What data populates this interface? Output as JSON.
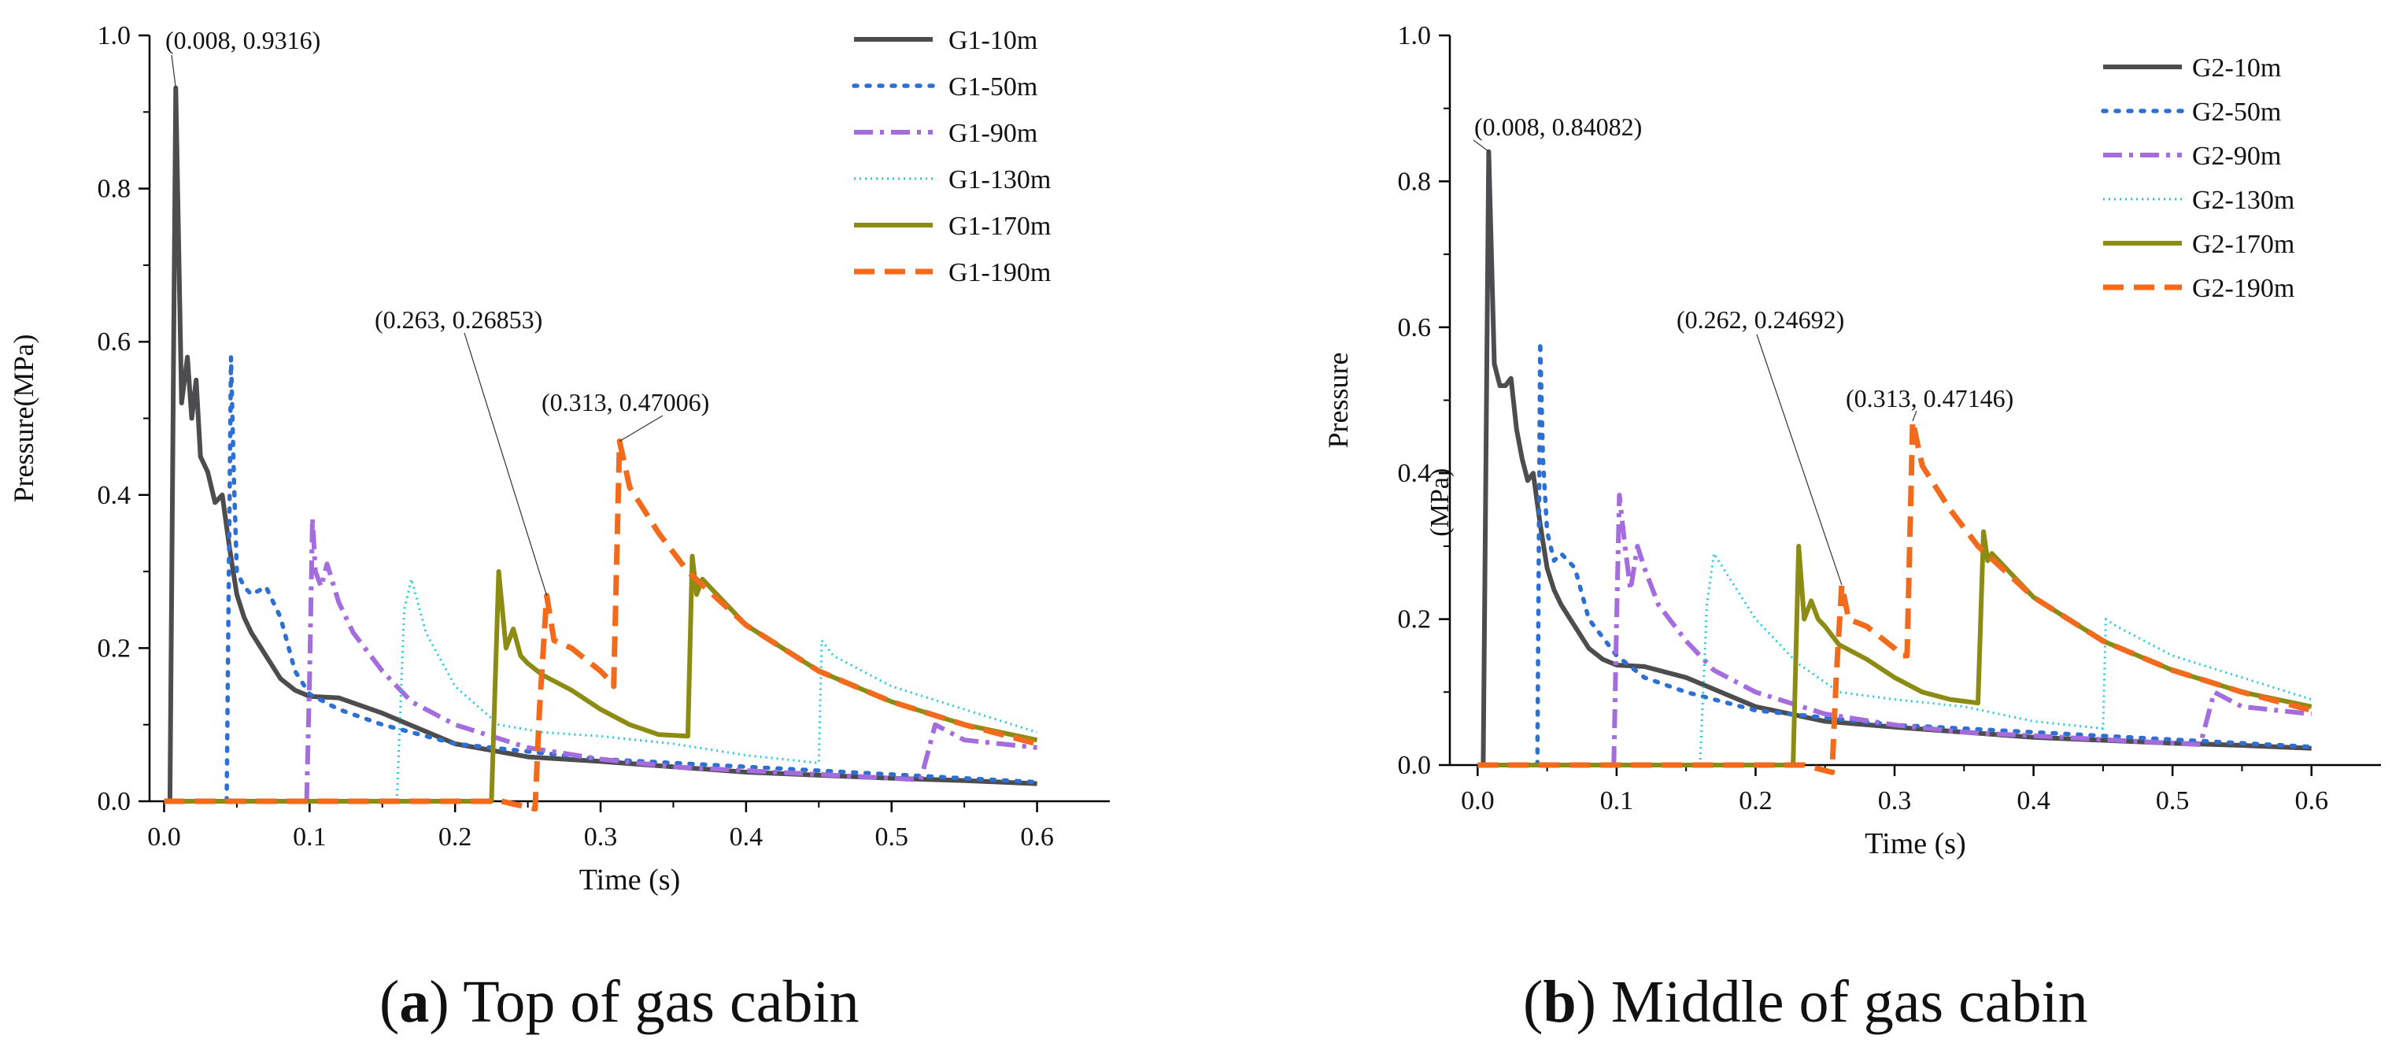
{
  "chart_data": [
    {
      "type": "line",
      "panel": "a",
      "caption_letter": "a",
      "caption_text": "Top of gas cabin",
      "xlabel": "Time (s)",
      "ylabel": "Pressure(MPa)",
      "xlim": [
        -0.01,
        0.65
      ],
      "ylim": [
        0,
        1.0
      ],
      "xticks": [
        0.0,
        0.1,
        0.2,
        0.3,
        0.4,
        0.5,
        0.6
      ],
      "xticklabels": [
        "0.0",
        "0.1",
        "0.2",
        "0.3",
        "0.4",
        "0.5",
        "0.6"
      ],
      "yticks": [
        0.0,
        0.2,
        0.4,
        0.6,
        0.8,
        1.0
      ],
      "yticklabels": [
        "0.0",
        "0.2",
        "0.4",
        "0.6",
        "0.8",
        "1.0"
      ],
      "legend_position": "top-right",
      "series": [
        {
          "name": "G1-10m",
          "color": "#4d4d4f",
          "dash": "solid",
          "x": [
            0.004,
            0.008,
            0.012,
            0.016,
            0.019,
            0.022,
            0.025,
            0.03,
            0.035,
            0.04,
            0.045,
            0.05,
            0.055,
            0.06,
            0.07,
            0.08,
            0.09,
            0.1,
            0.12,
            0.15,
            0.2,
            0.25,
            0.3,
            0.35,
            0.4,
            0.45,
            0.5,
            0.55,
            0.6
          ],
          "y": [
            0.0,
            0.9316,
            0.52,
            0.58,
            0.5,
            0.55,
            0.45,
            0.43,
            0.39,
            0.4,
            0.33,
            0.27,
            0.24,
            0.22,
            0.19,
            0.16,
            0.145,
            0.137,
            0.135,
            0.115,
            0.075,
            0.058,
            0.052,
            0.045,
            0.038,
            0.034,
            0.03,
            0.027,
            0.023
          ]
        },
        {
          "name": "G1-50m",
          "color": "#2e6fd4",
          "dash": "dot",
          "x": [
            0.043,
            0.044,
            0.046,
            0.048,
            0.05,
            0.055,
            0.06,
            0.07,
            0.08,
            0.09,
            0.1,
            0.12,
            0.15,
            0.2,
            0.3,
            0.4,
            0.5,
            0.6
          ],
          "y": [
            0.0,
            0.2,
            0.58,
            0.42,
            0.3,
            0.28,
            0.27,
            0.28,
            0.24,
            0.17,
            0.14,
            0.12,
            0.1,
            0.075,
            0.055,
            0.045,
            0.035,
            0.025
          ]
        },
        {
          "name": "G1-90m",
          "color": "#a46cdc",
          "dash": "dashdot",
          "x": [
            0.098,
            0.1,
            0.102,
            0.104,
            0.108,
            0.112,
            0.12,
            0.13,
            0.15,
            0.17,
            0.2,
            0.25,
            0.3,
            0.35,
            0.4,
            0.45,
            0.5,
            0.52,
            0.53,
            0.55,
            0.6
          ],
          "y": [
            0.0,
            0.16,
            0.37,
            0.3,
            0.28,
            0.31,
            0.26,
            0.22,
            0.17,
            0.13,
            0.1,
            0.07,
            0.055,
            0.045,
            0.04,
            0.035,
            0.03,
            0.028,
            0.1,
            0.08,
            0.07
          ]
        },
        {
          "name": "G1-130m",
          "color": "#26c9d8",
          "dash": "dense-dot",
          "x": [
            0.16,
            0.165,
            0.17,
            0.18,
            0.2,
            0.23,
            0.26,
            0.3,
            0.35,
            0.4,
            0.45,
            0.452,
            0.46,
            0.5,
            0.55,
            0.6
          ],
          "y": [
            0.0,
            0.25,
            0.29,
            0.22,
            0.15,
            0.1,
            0.09,
            0.085,
            0.075,
            0.06,
            0.05,
            0.21,
            0.19,
            0.15,
            0.12,
            0.09
          ]
        },
        {
          "name": "G1-170m",
          "color": "#8c8c14",
          "dash": "solid",
          "x": [
            0.0,
            0.225,
            0.23,
            0.235,
            0.24,
            0.245,
            0.25,
            0.26,
            0.28,
            0.3,
            0.32,
            0.34,
            0.36,
            0.363,
            0.366,
            0.37,
            0.38,
            0.4,
            0.45,
            0.5,
            0.55,
            0.6
          ],
          "y": [
            0.0,
            0.0,
            0.3,
            0.2,
            0.225,
            0.19,
            0.18,
            0.165,
            0.145,
            0.12,
            0.1,
            0.087,
            0.085,
            0.32,
            0.27,
            0.29,
            0.27,
            0.23,
            0.17,
            0.13,
            0.1,
            0.08
          ]
        },
        {
          "name": "G1-190m",
          "color": "#f26a1b",
          "dash": "dash",
          "x": [
            0.0,
            0.232,
            0.255,
            0.258,
            0.263,
            0.268,
            0.28,
            0.3,
            0.305,
            0.309,
            0.313,
            0.32,
            0.34,
            0.36,
            0.4,
            0.45,
            0.5,
            0.55,
            0.6
          ],
          "y": [
            0.0,
            0.0,
            -0.01,
            0.12,
            0.26853,
            0.21,
            0.2,
            0.17,
            0.16,
            0.15,
            0.47006,
            0.41,
            0.35,
            0.3,
            0.23,
            0.17,
            0.13,
            0.1,
            0.075
          ]
        }
      ],
      "annotations": [
        {
          "text": "(0.008, 0.9316)",
          "x": 0.008,
          "y": 0.9316
        },
        {
          "text": "(0.263, 0.26853)",
          "x": 0.263,
          "y": 0.26853
        },
        {
          "text": "(0.313, 0.47006)",
          "x": 0.313,
          "y": 0.47006
        }
      ]
    },
    {
      "type": "line",
      "panel": "b",
      "caption_letter": "b",
      "caption_text": "Middle of gas cabin",
      "xlabel": "Time (s)",
      "ylabel": "Pressure",
      "ylabel_unit": "(MPa)",
      "xlim": [
        -0.02,
        0.65
      ],
      "ylim": [
        0,
        1.0
      ],
      "xticks": [
        0.0,
        0.1,
        0.2,
        0.3,
        0.4,
        0.5,
        0.6
      ],
      "xticklabels": [
        "0.0",
        "0.1",
        "0.2",
        "0.3",
        "0.4",
        "0.5",
        "0.6"
      ],
      "yticks": [
        0.0,
        0.2,
        0.4,
        0.6,
        0.8,
        1.0
      ],
      "yticklabels": [
        "0.0",
        "0.2",
        "0.4",
        "0.6",
        "0.8",
        "1.0"
      ],
      "legend_position": "top-right",
      "series": [
        {
          "name": "G2-10m",
          "color": "#4d4d4f",
          "dash": "solid",
          "x": [
            0.004,
            0.008,
            0.012,
            0.016,
            0.02,
            0.024,
            0.028,
            0.032,
            0.036,
            0.04,
            0.045,
            0.05,
            0.055,
            0.06,
            0.07,
            0.08,
            0.09,
            0.1,
            0.12,
            0.15,
            0.2,
            0.25,
            0.3,
            0.35,
            0.4,
            0.45,
            0.5,
            0.55,
            0.6
          ],
          "y": [
            0.0,
            0.84082,
            0.55,
            0.52,
            0.52,
            0.53,
            0.46,
            0.42,
            0.39,
            0.4,
            0.33,
            0.27,
            0.24,
            0.22,
            0.19,
            0.16,
            0.145,
            0.137,
            0.135,
            0.12,
            0.08,
            0.06,
            0.052,
            0.045,
            0.038,
            0.034,
            0.03,
            0.027,
            0.023
          ]
        },
        {
          "name": "G2-50m",
          "color": "#2e6fd4",
          "dash": "dot",
          "x": [
            0.043,
            0.045,
            0.047,
            0.05,
            0.055,
            0.06,
            0.07,
            0.08,
            0.1,
            0.12,
            0.15,
            0.2,
            0.3,
            0.4,
            0.5,
            0.6
          ],
          "y": [
            0.0,
            0.58,
            0.42,
            0.32,
            0.28,
            0.29,
            0.27,
            0.2,
            0.15,
            0.12,
            0.1,
            0.075,
            0.055,
            0.045,
            0.035,
            0.025
          ]
        },
        {
          "name": "G2-90m",
          "color": "#a46cdc",
          "dash": "dashdot",
          "x": [
            0.098,
            0.1,
            0.102,
            0.106,
            0.11,
            0.115,
            0.12,
            0.13,
            0.15,
            0.17,
            0.2,
            0.25,
            0.3,
            0.35,
            0.4,
            0.45,
            0.5,
            0.52,
            0.53,
            0.55,
            0.6
          ],
          "y": [
            0.0,
            0.2,
            0.37,
            0.3,
            0.24,
            0.3,
            0.27,
            0.22,
            0.17,
            0.13,
            0.1,
            0.07,
            0.055,
            0.045,
            0.04,
            0.035,
            0.03,
            0.028,
            0.1,
            0.08,
            0.07
          ]
        },
        {
          "name": "G2-130m",
          "color": "#26c9d8",
          "dash": "dense-dot",
          "x": [
            0.16,
            0.165,
            0.17,
            0.18,
            0.2,
            0.23,
            0.26,
            0.3,
            0.35,
            0.4,
            0.45,
            0.452,
            0.46,
            0.5,
            0.55,
            0.6
          ],
          "y": [
            0.0,
            0.22,
            0.29,
            0.26,
            0.2,
            0.14,
            0.1,
            0.09,
            0.08,
            0.06,
            0.05,
            0.2,
            0.19,
            0.15,
            0.12,
            0.09
          ]
        },
        {
          "name": "G2-170m",
          "color": "#8c8c14",
          "dash": "solid",
          "x": [
            0.0,
            0.227,
            0.231,
            0.235,
            0.24,
            0.245,
            0.25,
            0.26,
            0.28,
            0.3,
            0.32,
            0.34,
            0.36,
            0.364,
            0.367,
            0.37,
            0.38,
            0.4,
            0.45,
            0.5,
            0.55,
            0.6
          ],
          "y": [
            0.0,
            0.0,
            0.3,
            0.2,
            0.225,
            0.2,
            0.19,
            0.165,
            0.145,
            0.12,
            0.1,
            0.09,
            0.085,
            0.32,
            0.28,
            0.29,
            0.27,
            0.23,
            0.17,
            0.13,
            0.1,
            0.08
          ]
        },
        {
          "name": "G2-190m",
          "color": "#f26a1b",
          "dash": "dash",
          "x": [
            0.0,
            0.235,
            0.255,
            0.258,
            0.262,
            0.267,
            0.28,
            0.3,
            0.305,
            0.309,
            0.313,
            0.32,
            0.34,
            0.36,
            0.4,
            0.45,
            0.5,
            0.55,
            0.6
          ],
          "y": [
            0.0,
            0.0,
            -0.01,
            0.12,
            0.24692,
            0.2,
            0.19,
            0.16,
            0.15,
            0.15,
            0.47146,
            0.41,
            0.35,
            0.3,
            0.23,
            0.17,
            0.13,
            0.1,
            0.075
          ]
        }
      ],
      "annotations": [
        {
          "text": "(0.008, 0.84082)",
          "x": 0.008,
          "y": 0.84082
        },
        {
          "text": "(0.262, 0.24692)",
          "x": 0.262,
          "y": 0.24692
        },
        {
          "text": "(0.313, 0.47146)",
          "x": 0.313,
          "y": 0.47146
        }
      ]
    }
  ]
}
